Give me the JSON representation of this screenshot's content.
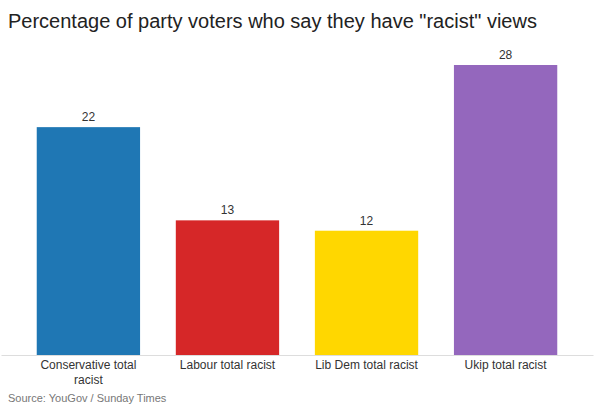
{
  "chart_data": {
    "type": "bar",
    "title": "Percentage of party voters who say they have \"racist\" views",
    "categories": [
      "Conservative total racist",
      "Labour total racist",
      "Lib Dem total racist",
      "Ukip total racist"
    ],
    "values": [
      22,
      13,
      12,
      28
    ],
    "colors": [
      "#1f77b4",
      "#d62728",
      "#ffd700",
      "#9467bd"
    ],
    "ylim": [
      0,
      28
    ],
    "data_labels": true,
    "tick_labels": "x",
    "source": "Source: YouGov / Sunday Times"
  }
}
